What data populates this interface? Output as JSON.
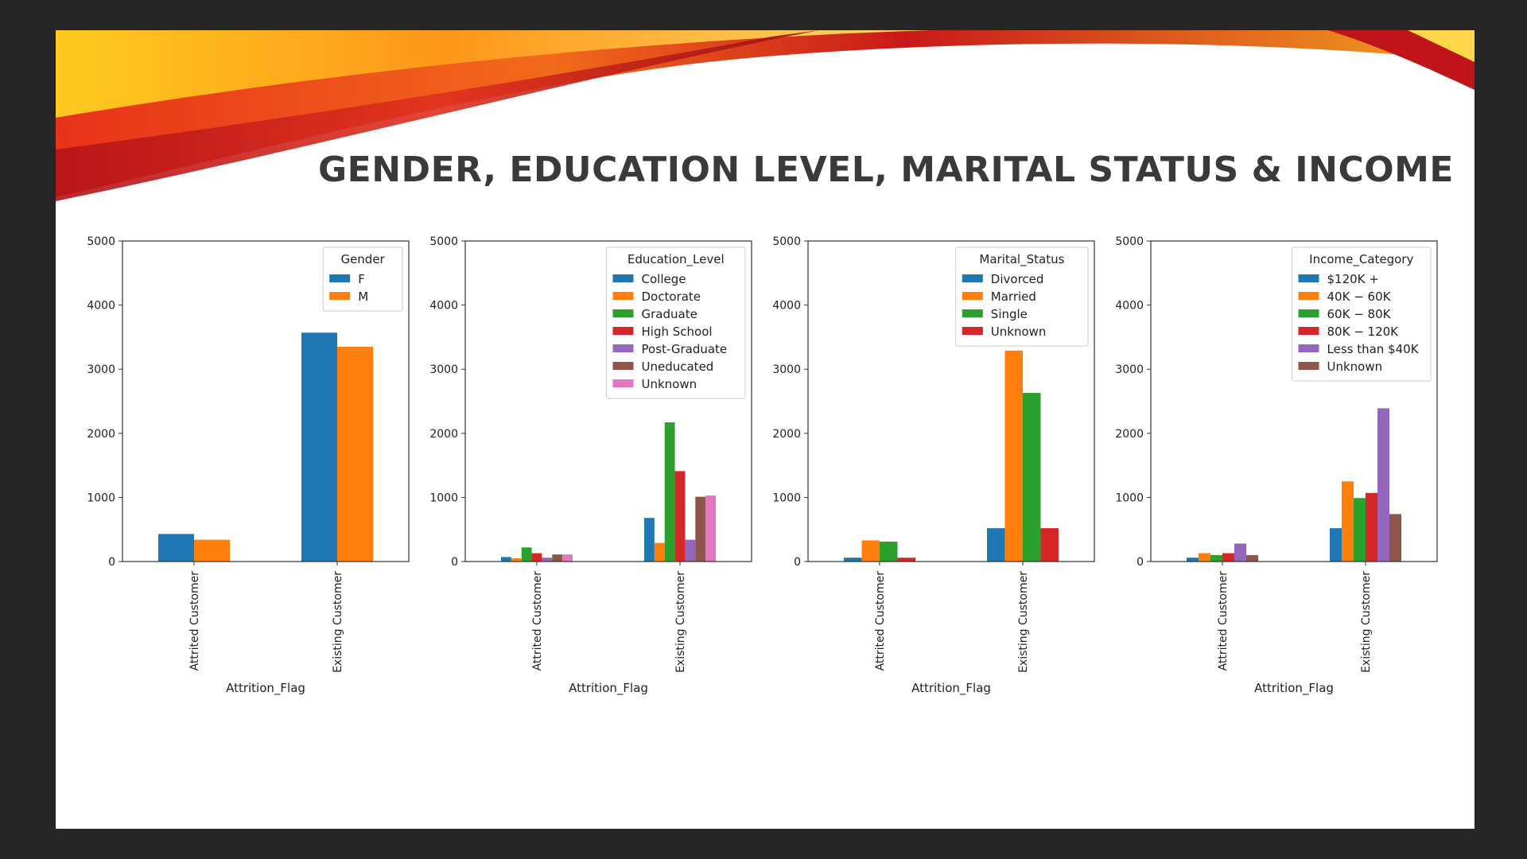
{
  "slide": {
    "title": "GENDER, EDUCATION LEVEL, MARITAL STATUS & INCOME"
  },
  "chart_data": [
    {
      "type": "bar",
      "categories": [
        "Attrited Customer",
        "Existing Customer"
      ],
      "xlabel": "Attrition_Flag",
      "ylabel": "",
      "ylim": [
        0,
        5000
      ],
      "yticks": [
        0,
        1000,
        2000,
        3000,
        4000,
        5000
      ],
      "legend_title": "Gender",
      "legend_position": "top-right",
      "grid": false,
      "series": [
        {
          "name": "F",
          "color": "#1f77b4",
          "values": [
            430,
            3570
          ]
        },
        {
          "name": "M",
          "color": "#ff7f0e",
          "values": [
            340,
            3350
          ]
        }
      ]
    },
    {
      "type": "bar",
      "categories": [
        "Attrited Customer",
        "Existing Customer"
      ],
      "xlabel": "Attrition_Flag",
      "ylabel": "",
      "ylim": [
        0,
        5000
      ],
      "yticks": [
        0,
        1000,
        2000,
        3000,
        4000,
        5000
      ],
      "legend_title": "Education_Level",
      "legend_position": "top-right",
      "grid": false,
      "series": [
        {
          "name": "College",
          "color": "#1f77b4",
          "values": [
            70,
            680
          ]
        },
        {
          "name": "Doctorate",
          "color": "#ff7f0e",
          "values": [
            50,
            290
          ]
        },
        {
          "name": "Graduate",
          "color": "#2ca02c",
          "values": [
            220,
            2170
          ]
        },
        {
          "name": "High School",
          "color": "#d62728",
          "values": [
            130,
            1410
          ]
        },
        {
          "name": "Post-Graduate",
          "color": "#9467bd",
          "values": [
            60,
            340
          ]
        },
        {
          "name": "Uneducated",
          "color": "#8c564b",
          "values": [
            110,
            1010
          ]
        },
        {
          "name": "Unknown",
          "color": "#e377c2",
          "values": [
            110,
            1030
          ]
        }
      ]
    },
    {
      "type": "bar",
      "categories": [
        "Attrited Customer",
        "Existing Customer"
      ],
      "xlabel": "Attrition_Flag",
      "ylabel": "",
      "ylim": [
        0,
        5000
      ],
      "yticks": [
        0,
        1000,
        2000,
        3000,
        4000,
        5000
      ],
      "legend_title": "Marital_Status",
      "legend_position": "top-right",
      "grid": false,
      "series": [
        {
          "name": "Divorced",
          "color": "#1f77b4",
          "values": [
            60,
            520
          ]
        },
        {
          "name": "Married",
          "color": "#ff7f0e",
          "values": [
            330,
            3290
          ]
        },
        {
          "name": "Single",
          "color": "#2ca02c",
          "values": [
            310,
            2630
          ]
        },
        {
          "name": "Unknown",
          "color": "#d62728",
          "values": [
            60,
            520
          ]
        }
      ]
    },
    {
      "type": "bar",
      "categories": [
        "Attrited Customer",
        "Existing Customer"
      ],
      "xlabel": "Attrition_Flag",
      "ylabel": "",
      "ylim": [
        0,
        5000
      ],
      "yticks": [
        0,
        1000,
        2000,
        3000,
        4000,
        5000
      ],
      "legend_title": "Income_Category",
      "legend_position": "top-right",
      "grid": false,
      "series": [
        {
          "name": "$120K +",
          "color": "#1f77b4",
          "values": [
            60,
            520
          ]
        },
        {
          "name": "40K − 60K",
          "color": "#ff7f0e",
          "values": [
            130,
            1250
          ]
        },
        {
          "name": "60K − 80K",
          "color": "#2ca02c",
          "values": [
            100,
            990
          ]
        },
        {
          "name": "80K − 120K",
          "color": "#d62728",
          "values": [
            130,
            1070
          ]
        },
        {
          "name": "Less than $40K",
          "color": "#9467bd",
          "values": [
            280,
            2390
          ]
        },
        {
          "name": "Unknown",
          "color": "#8c564b",
          "values": [
            100,
            740
          ]
        }
      ]
    }
  ]
}
